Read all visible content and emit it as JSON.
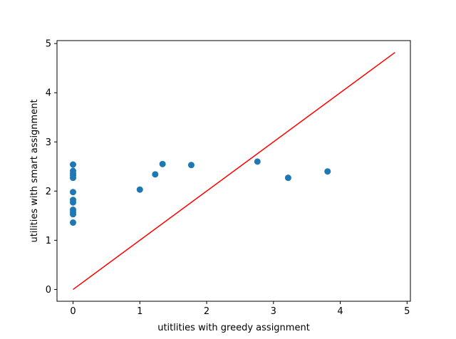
{
  "chart_data": {
    "type": "scatter",
    "title": "",
    "xlabel": "utitlities with greedy assignment",
    "ylabel": "utilities with smart assignment",
    "xlim": [
      -0.24,
      5.05
    ],
    "ylim": [
      -0.24,
      5.06
    ],
    "xticks": [
      0,
      1,
      2,
      3,
      4,
      5
    ],
    "yticks": [
      0,
      1,
      2,
      3,
      4,
      5
    ],
    "grid": false,
    "colors": {
      "points": "#1f77b4",
      "line": "#ff0000"
    },
    "series": [
      {
        "type": "scatter",
        "points": [
          [
            0,
            2.54
          ],
          [
            0,
            2.41
          ],
          [
            0,
            2.36
          ],
          [
            0,
            2.32
          ],
          [
            0,
            2.27
          ],
          [
            0,
            1.98
          ],
          [
            0,
            1.82
          ],
          [
            0,
            1.77
          ],
          [
            0,
            1.62
          ],
          [
            0,
            1.57
          ],
          [
            0,
            1.53
          ],
          [
            0,
            1.36
          ],
          [
            1.0,
            2.03
          ],
          [
            1.23,
            2.34
          ],
          [
            1.34,
            2.55
          ],
          [
            1.77,
            2.53
          ],
          [
            2.76,
            2.6
          ],
          [
            3.22,
            2.27
          ],
          [
            3.81,
            2.4
          ]
        ]
      },
      {
        "type": "line",
        "points": [
          [
            0,
            0
          ],
          [
            4.82,
            4.82
          ]
        ]
      }
    ]
  }
}
